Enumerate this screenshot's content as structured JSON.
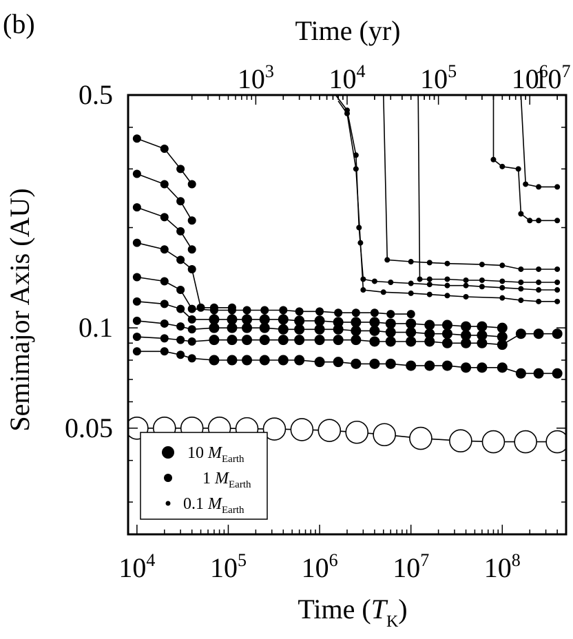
{
  "panel_label": "(b)",
  "chart_data": {
    "type": "scatter",
    "xscale": "log",
    "yscale": "log",
    "xlim": [
      8000,
      500000000
    ],
    "ylim": [
      0.024,
      0.5
    ],
    "top_axis": {
      "label": "Time (yr)",
      "tick_values": [
        1000,
        10000,
        100000,
        1000000,
        10000000
      ],
      "tick_labels_base": "10",
      "tick_labels_exp": [
        "3",
        "4",
        "5",
        "6",
        "7"
      ],
      "tick_positions_TK": [
        200000,
        2000000,
        20000000,
        200000000,
        2000000000
      ]
    },
    "bottom_axis": {
      "label_main": "Time (",
      "label_var": "T",
      "label_sub": "K",
      "label_end": ")",
      "tick_values": [
        10000,
        100000,
        1000000,
        10000000,
        100000000
      ],
      "tick_labels_base": "10",
      "tick_labels_exp": [
        "4",
        "5",
        "6",
        "7",
        "8"
      ]
    },
    "left_axis": {
      "label": "Semimajor Axis (AU)",
      "ticks": [
        0.05,
        0.1,
        0.5
      ],
      "tick_labels": [
        "0.05",
        "0.1",
        "0.5"
      ]
    },
    "legend": {
      "placement": "bottom-left",
      "items": [
        {
          "value": "10",
          "unit": "M",
          "sub": "Earth",
          "size": "large"
        },
        {
          "value": "1",
          "unit": "M",
          "sub": "Earth",
          "size": "medium"
        },
        {
          "value": "0.1",
          "unit": "M",
          "sub": "Earth",
          "size": "small"
        }
      ]
    },
    "gas_giant": {
      "marker": "open-circle",
      "points": [
        {
          "x": 10000,
          "y": 0.05
        },
        {
          "x": 20000,
          "y": 0.05
        },
        {
          "x": 40000,
          "y": 0.05
        },
        {
          "x": 80000,
          "y": 0.05
        },
        {
          "x": 160000,
          "y": 0.0498
        },
        {
          "x": 320000,
          "y": 0.0497
        },
        {
          "x": 640000,
          "y": 0.0495
        },
        {
          "x": 1280000,
          "y": 0.0492
        },
        {
          "x": 2560000,
          "y": 0.0486
        },
        {
          "x": 5120000,
          "y": 0.0478
        },
        {
          "x": 12800000,
          "y": 0.0466
        },
        {
          "x": 35000000,
          "y": 0.0458
        },
        {
          "x": 80000000,
          "y": 0.0455
        },
        {
          "x": 180000000,
          "y": 0.0455
        },
        {
          "x": 400000000,
          "y": 0.0455
        }
      ]
    },
    "inner_series": [
      {
        "y0": 0.085,
        "size": "medium",
        "points": [
          [
            10000,
            0.085
          ],
          [
            20000,
            0.085
          ],
          [
            30000,
            0.083
          ],
          [
            40000,
            0.081
          ],
          [
            70000,
            0.08
          ],
          [
            110000,
            0.08
          ],
          [
            160000,
            0.08
          ],
          [
            250000,
            0.08
          ],
          [
            400000,
            0.08
          ],
          [
            600000,
            0.08
          ],
          [
            1000000,
            0.079
          ],
          [
            1600000,
            0.079
          ],
          [
            2500000,
            0.078
          ],
          [
            4000000,
            0.078
          ],
          [
            6000000,
            0.078
          ],
          [
            10000000,
            0.077
          ],
          [
            16000000,
            0.077
          ],
          [
            25000000,
            0.077
          ],
          [
            40000000,
            0.076
          ],
          [
            60000000,
            0.076
          ],
          [
            100000000,
            0.076
          ],
          [
            160000000,
            0.073
          ],
          [
            250000000,
            0.073
          ],
          [
            400000000,
            0.073
          ]
        ]
      },
      {
        "y0": 0.094,
        "size": "medium",
        "points": [
          [
            10000,
            0.094
          ],
          [
            20000,
            0.093
          ],
          [
            30000,
            0.092
          ],
          [
            40000,
            0.091
          ],
          [
            70000,
            0.092
          ],
          [
            110000,
            0.092
          ],
          [
            160000,
            0.092
          ],
          [
            250000,
            0.092
          ],
          [
            400000,
            0.092
          ],
          [
            600000,
            0.092
          ],
          [
            1000000,
            0.092
          ],
          [
            1600000,
            0.092
          ],
          [
            2500000,
            0.092
          ],
          [
            4000000,
            0.091
          ],
          [
            6000000,
            0.091
          ],
          [
            10000000,
            0.091
          ],
          [
            16000000,
            0.091
          ],
          [
            25000000,
            0.09
          ],
          [
            40000000,
            0.09
          ],
          [
            60000000,
            0.09
          ],
          [
            100000000,
            0.089
          ],
          [
            160000000,
            0.096
          ],
          [
            250000000,
            0.096
          ],
          [
            400000000,
            0.096
          ]
        ]
      },
      {
        "y0": 0.105,
        "size": "medium",
        "points": [
          [
            10000,
            0.105
          ],
          [
            20000,
            0.103
          ],
          [
            30000,
            0.101
          ],
          [
            40000,
            0.099
          ],
          [
            70000,
            0.1
          ],
          [
            110000,
            0.1
          ],
          [
            160000,
            0.1
          ],
          [
            250000,
            0.1
          ],
          [
            400000,
            0.099
          ],
          [
            600000,
            0.099
          ],
          [
            1000000,
            0.099
          ],
          [
            1600000,
            0.099
          ],
          [
            2500000,
            0.098
          ],
          [
            4000000,
            0.098
          ],
          [
            6000000,
            0.097
          ],
          [
            10000000,
            0.097
          ],
          [
            16000000,
            0.096
          ],
          [
            25000000,
            0.096
          ],
          [
            40000000,
            0.095
          ],
          [
            60000000,
            0.095
          ],
          [
            100000000,
            0.094
          ]
        ]
      },
      {
        "y0": 0.12,
        "size": "medium",
        "points": [
          [
            10000,
            0.12
          ],
          [
            20000,
            0.118
          ],
          [
            30000,
            0.114
          ],
          [
            40000,
            0.106
          ],
          [
            70000,
            0.106
          ],
          [
            110000,
            0.106
          ],
          [
            160000,
            0.106
          ],
          [
            250000,
            0.106
          ],
          [
            400000,
            0.106
          ],
          [
            600000,
            0.105
          ],
          [
            1000000,
            0.105
          ],
          [
            1600000,
            0.104
          ],
          [
            2500000,
            0.104
          ],
          [
            4000000,
            0.104
          ],
          [
            6000000,
            0.103
          ],
          [
            10000000,
            0.103
          ],
          [
            16000000,
            0.102
          ],
          [
            25000000,
            0.102
          ],
          [
            40000000,
            0.101
          ],
          [
            60000000,
            0.101
          ],
          [
            100000000,
            0.1
          ]
        ]
      },
      {
        "y0": 0.142,
        "size": "medium",
        "points": [
          [
            10000,
            0.142
          ],
          [
            20000,
            0.138
          ],
          [
            30000,
            0.13
          ],
          [
            40000,
            0.114
          ],
          [
            70000,
            0.113
          ],
          [
            110000,
            0.113
          ],
          [
            160000,
            0.113
          ],
          [
            250000,
            0.113
          ],
          [
            400000,
            0.113
          ],
          [
            600000,
            0.112
          ],
          [
            1000000,
            0.112
          ],
          [
            1600000,
            0.111
          ],
          [
            2500000,
            0.111
          ],
          [
            4000000,
            0.111
          ],
          [
            6000000,
            0.11
          ],
          [
            10000000,
            0.11
          ]
        ]
      },
      {
        "y0": 0.18,
        "size": "medium",
        "points": [
          [
            10000,
            0.18
          ],
          [
            20000,
            0.172
          ],
          [
            30000,
            0.16
          ],
          [
            40000,
            0.15
          ],
          [
            50000,
            0.115
          ],
          [
            70000,
            0.115
          ],
          [
            110000,
            0.115
          ]
        ]
      },
      {
        "y0": 0.23,
        "size": "medium",
        "points": [
          [
            10000,
            0.23
          ],
          [
            20000,
            0.215
          ],
          [
            30000,
            0.195
          ],
          [
            40000,
            0.172
          ]
        ]
      },
      {
        "y0": 0.29,
        "size": "medium",
        "points": [
          [
            10000,
            0.29
          ],
          [
            20000,
            0.27
          ],
          [
            30000,
            0.24
          ],
          [
            40000,
            0.21
          ]
        ]
      },
      {
        "y0": 0.37,
        "size": "medium",
        "points": [
          [
            10000,
            0.37
          ],
          [
            20000,
            0.345
          ],
          [
            30000,
            0.3
          ],
          [
            40000,
            0.27
          ]
        ]
      }
    ],
    "outer_series": [
      {
        "points": [
          [
            1500000,
            0.5
          ],
          [
            2000000,
            0.45
          ],
          [
            2500000,
            0.33
          ],
          [
            2700000,
            0.2
          ],
          [
            3000000,
            0.14
          ],
          [
            4000000,
            0.138
          ],
          [
            6000000,
            0.137
          ],
          [
            10000000,
            0.136
          ],
          [
            16000000,
            0.135
          ],
          [
            25000000,
            0.134
          ],
          [
            40000000,
            0.134
          ],
          [
            60000000,
            0.133
          ],
          [
            100000000,
            0.132
          ],
          [
            160000000,
            0.131
          ],
          [
            250000000,
            0.13
          ],
          [
            400000000,
            0.13
          ]
        ]
      },
      {
        "points": [
          [
            1600000,
            0.48
          ],
          [
            2000000,
            0.44
          ],
          [
            2500000,
            0.3
          ],
          [
            2800000,
            0.18
          ],
          [
            3000000,
            0.13
          ],
          [
            5000000,
            0.128
          ],
          [
            10000000,
            0.127
          ],
          [
            16000000,
            0.126
          ],
          [
            25000000,
            0.125
          ],
          [
            40000000,
            0.124
          ],
          [
            100000000,
            0.123
          ],
          [
            160000000,
            0.121
          ],
          [
            250000000,
            0.12
          ],
          [
            400000000,
            0.12
          ]
        ]
      },
      {
        "points": [
          [
            5000000,
            0.5
          ],
          [
            5500000,
            0.16
          ],
          [
            10000000,
            0.158
          ],
          [
            16000000,
            0.157
          ],
          [
            25000000,
            0.156
          ],
          [
            60000000,
            0.155
          ],
          [
            100000000,
            0.154
          ],
          [
            160000000,
            0.15
          ],
          [
            250000000,
            0.15
          ],
          [
            400000000,
            0.15
          ]
        ]
      },
      {
        "points": [
          [
            12000000,
            0.5
          ],
          [
            12500000,
            0.14
          ],
          [
            16000000,
            0.14
          ],
          [
            25000000,
            0.14
          ],
          [
            40000000,
            0.139
          ],
          [
            60000000,
            0.139
          ],
          [
            100000000,
            0.138
          ],
          [
            160000000,
            0.137
          ],
          [
            250000000,
            0.137
          ],
          [
            400000000,
            0.137
          ]
        ]
      },
      {
        "points": [
          [
            80000000,
            0.5
          ],
          [
            80000000,
            0.32
          ],
          [
            100000000,
            0.305
          ],
          [
            150000000,
            0.3
          ],
          [
            160000000,
            0.22
          ],
          [
            200000000,
            0.21
          ],
          [
            250000000,
            0.21
          ],
          [
            400000000,
            0.21
          ]
        ]
      },
      {
        "points": [
          [
            160000000,
            0.5
          ],
          [
            180000000,
            0.27
          ],
          [
            250000000,
            0.265
          ],
          [
            400000000,
            0.265
          ]
        ]
      }
    ]
  }
}
